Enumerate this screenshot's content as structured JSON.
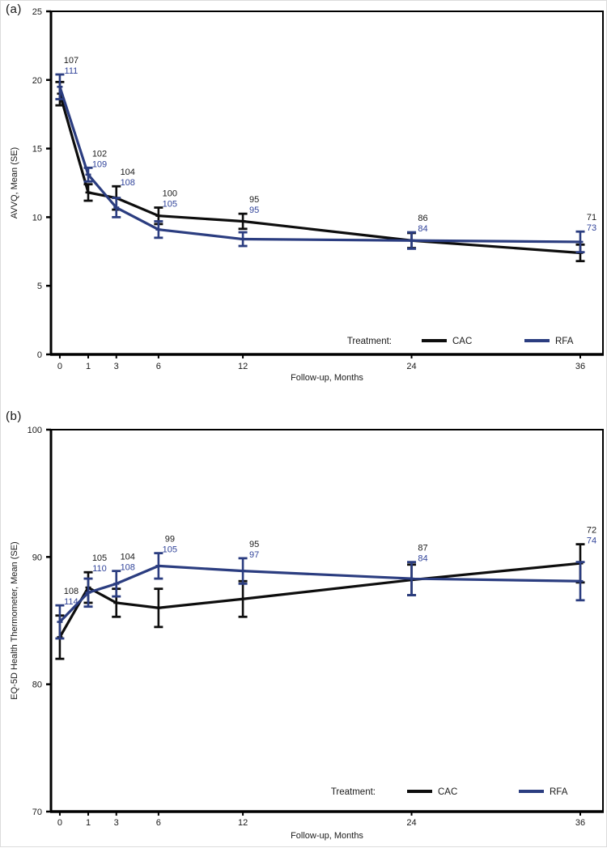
{
  "figure": {
    "background": "#ffffff",
    "series_colors": {
      "cac_line": "#0d0d0d",
      "cac_text": "#1a1a1a",
      "rfa_line": "#2b3d80",
      "rfa_text": "#30439a"
    },
    "legend": {
      "title": "Treatment:",
      "entries": [
        "CAC",
        "RFA"
      ]
    }
  },
  "chart_data": [
    {
      "panel": "(a)",
      "type": "line",
      "x": [
        0,
        1,
        3,
        6,
        12,
        24,
        36
      ],
      "xlabel": "Follow-up, Months",
      "ylabel": "AVVQ, Mean (SE)",
      "ylim": [
        0,
        25
      ],
      "yticks": [
        0,
        5,
        10,
        15,
        20,
        25
      ],
      "grid": false,
      "legend_position": "inside-bottom-right",
      "error_bars": "SE",
      "series": [
        {
          "name": "CAC",
          "values": [
            19.0,
            11.8,
            11.4,
            10.1,
            9.7,
            8.3,
            7.4
          ],
          "se": [
            0.85,
            0.6,
            0.85,
            0.6,
            0.55,
            0.55,
            0.6
          ],
          "n": [
            107,
            102,
            104,
            100,
            95,
            86,
            71
          ]
        },
        {
          "name": "RFA",
          "values": [
            19.5,
            13.1,
            10.7,
            9.1,
            8.4,
            8.3,
            8.2
          ],
          "se": [
            0.9,
            0.5,
            0.7,
            0.6,
            0.5,
            0.6,
            0.75
          ],
          "n": [
            111,
            109,
            108,
            105,
            95,
            84,
            73
          ]
        }
      ]
    },
    {
      "panel": "(b)",
      "type": "line",
      "x": [
        0,
        1,
        3,
        6,
        12,
        24,
        36
      ],
      "xlabel": "Follow-up, Months",
      "ylabel": "EQ-5D Health Thermometer, Mean (SE)",
      "ylim": [
        70,
        100
      ],
      "yticks": [
        70,
        80,
        90,
        100
      ],
      "grid": false,
      "legend_position": "inside-bottom-right",
      "error_bars": "SE",
      "series": [
        {
          "name": "CAC",
          "values": [
            83.7,
            87.6,
            86.4,
            86.0,
            86.7,
            88.2,
            89.5
          ],
          "se": [
            1.7,
            1.2,
            1.1,
            1.5,
            1.4,
            1.2,
            1.5
          ],
          "n": [
            108,
            105,
            104,
            99,
            95,
            87,
            72
          ]
        },
        {
          "name": "RFA",
          "values": [
            84.9,
            87.2,
            87.9,
            89.3,
            88.9,
            88.3,
            88.1
          ],
          "se": [
            1.3,
            1.1,
            1.0,
            1.0,
            1.0,
            1.3,
            1.5
          ],
          "n": [
            114,
            110,
            108,
            105,
            97,
            84,
            74
          ]
        }
      ]
    }
  ]
}
